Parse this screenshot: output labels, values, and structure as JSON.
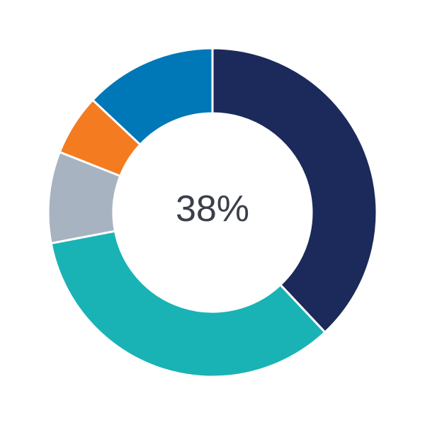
{
  "chart_data": {
    "type": "pie",
    "variant": "donut",
    "center_label": "38%",
    "start": "top",
    "direction": "clockwise",
    "values": [
      38,
      34,
      9,
      6,
      13
    ],
    "colors": [
      "#1b2a5a",
      "#1ab3b5",
      "#a8b3c2",
      "#f47b20",
      "#0077b6"
    ]
  }
}
